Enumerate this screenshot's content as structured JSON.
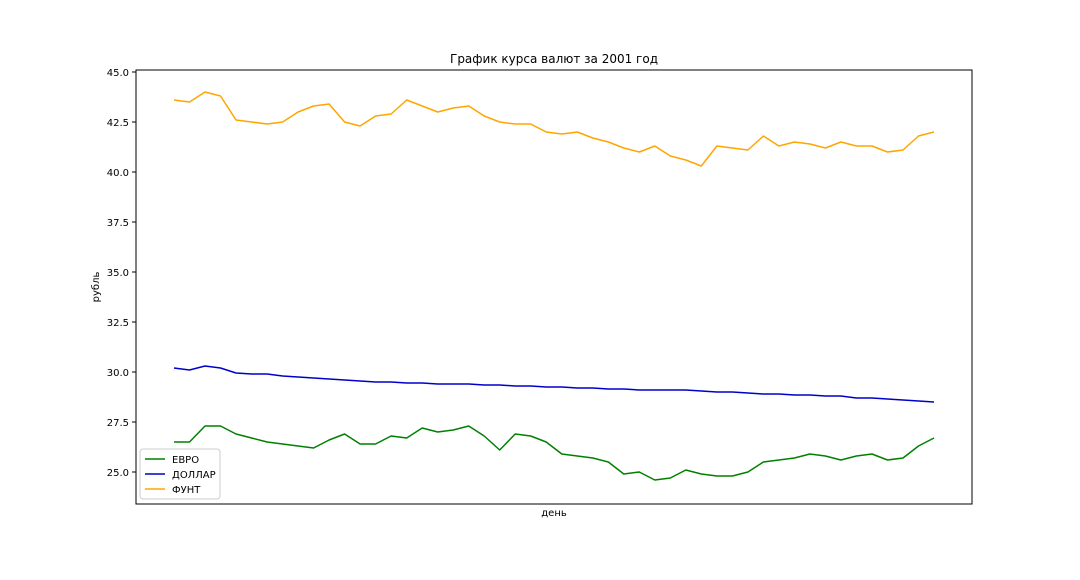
{
  "chart_data": {
    "type": "line",
    "title": "График курса валют за 2001 год",
    "xlabel": "день",
    "ylabel": "рубль",
    "ylim": [
      23.4,
      45.1
    ],
    "y_ticks": [
      "25.0",
      "27.5",
      "30.0",
      "32.5",
      "35.0",
      "37.5",
      "40.0",
      "42.5",
      "45.0"
    ],
    "x_ticks_visible": false,
    "grid": false,
    "legend_position": "lower-left",
    "x": [
      1,
      6,
      11,
      16,
      21,
      26,
      31,
      36,
      41,
      46,
      51,
      56,
      61,
      66,
      71,
      76,
      81,
      86,
      91,
      96,
      101,
      106,
      111,
      116,
      121,
      126,
      131,
      136,
      141,
      146,
      151,
      156,
      161,
      166,
      171,
      176,
      181,
      186,
      191,
      196,
      201,
      206,
      211,
      216,
      221,
      226,
      231,
      236,
      241,
      246
    ],
    "series": [
      {
        "name": "ЕВРО",
        "color": "#008000",
        "values": [
          26.5,
          26.5,
          27.3,
          27.3,
          26.9,
          26.7,
          26.5,
          26.4,
          26.3,
          26.2,
          26.6,
          26.9,
          26.4,
          26.4,
          26.8,
          26.7,
          27.2,
          27.0,
          27.1,
          27.3,
          26.8,
          26.1,
          26.9,
          26.8,
          26.5,
          25.9,
          25.8,
          25.7,
          25.5,
          24.9,
          25.0,
          24.6,
          24.7,
          25.1,
          24.9,
          24.8,
          24.8,
          25.0,
          25.5,
          25.6,
          25.7,
          25.9,
          25.8,
          25.6,
          25.8,
          25.9,
          25.6,
          25.7,
          26.3,
          26.7
        ]
      },
      {
        "name": "ДОЛЛАР",
        "color": "#0000cc",
        "values": [
          30.2,
          30.1,
          30.3,
          30.2,
          29.95,
          29.9,
          29.9,
          29.8,
          29.75,
          29.7,
          29.65,
          29.6,
          29.55,
          29.5,
          29.5,
          29.45,
          29.45,
          29.4,
          29.4,
          29.4,
          29.35,
          29.35,
          29.3,
          29.3,
          29.25,
          29.25,
          29.2,
          29.2,
          29.15,
          29.15,
          29.1,
          29.1,
          29.1,
          29.1,
          29.05,
          29.0,
          29.0,
          28.95,
          28.9,
          28.9,
          28.85,
          28.85,
          28.8,
          28.8,
          28.7,
          28.7,
          28.65,
          28.6,
          28.55,
          28.5
        ]
      },
      {
        "name": "ФУНТ",
        "color": "#ffa500",
        "values": [
          43.6,
          43.5,
          44.0,
          43.8,
          42.6,
          42.5,
          42.4,
          42.5,
          43.0,
          43.3,
          43.4,
          42.5,
          42.3,
          42.8,
          42.9,
          43.6,
          43.3,
          43.0,
          43.2,
          43.3,
          42.8,
          42.5,
          42.4,
          42.4,
          42.0,
          41.9,
          42.0,
          41.7,
          41.5,
          41.2,
          41.0,
          41.3,
          40.8,
          40.6,
          40.3,
          41.3,
          41.2,
          41.1,
          41.8,
          41.3,
          41.5,
          41.4,
          41.2,
          41.5,
          41.3,
          41.3,
          41.0,
          41.1,
          41.8,
          42.0
        ]
      }
    ]
  }
}
